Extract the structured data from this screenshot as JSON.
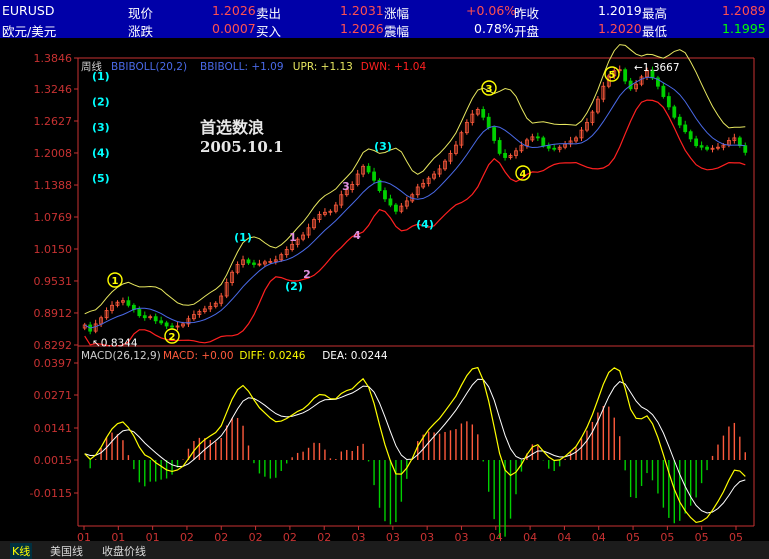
{
  "quote": {
    "symbol": "EURUSD",
    "name": "欧元/美元",
    "fields": [
      {
        "label": "现价",
        "value": "1.2026"
      },
      {
        "label": "卖出",
        "value": "1.2031"
      },
      {
        "label": "涨幅",
        "value": "+0.06%"
      },
      {
        "label": "昨收",
        "value": "1.2019"
      },
      {
        "label": "最高",
        "value": "1.2089"
      },
      {
        "label": "涨跌",
        "value": "0.0007"
      },
      {
        "label": "买入",
        "value": "1.2026"
      },
      {
        "label": "震幅",
        "value": "0.78%"
      },
      {
        "label": "开盘",
        "value": "1.2020"
      },
      {
        "label": "最低",
        "value": "1.1995"
      }
    ]
  },
  "tabs": [
    "K线",
    "美国线",
    "收盘价线"
  ],
  "colors": {
    "up": "#ff5a3c",
    "down": "#00d000",
    "upper_band": "#e8e860",
    "mid_band": "#4a6ae8",
    "lower_band": "#ff2020",
    "diff": "#ffff00",
    "dea": "#ffffff",
    "axis": "#c83232",
    "label": "#00ffff"
  },
  "chart_data": [
    {
      "type": "candlestick",
      "period": "周线",
      "indicator": "BBIBOLL(20,2)",
      "legend": [
        {
          "text": "BBIBOLL: +1.09",
          "color": "#4a6ae8"
        },
        {
          "text": "UPR: +1.13",
          "color": "#e8e860"
        },
        {
          "text": "DWN: +1.04",
          "color": "#ff2020"
        }
      ],
      "ylim": [
        0.8292,
        1.3846
      ],
      "yticks": [
        "1.3846",
        "1.3246",
        "1.2627",
        "1.2008",
        "1.1388",
        "1.0769",
        "1.0150",
        "0.9531",
        "0.8912",
        "0.8292"
      ],
      "xticks": [
        "01",
        "01",
        "01",
        "02",
        "02",
        "02",
        "02",
        "02",
        "03",
        "03",
        "03",
        "03",
        "04",
        "04",
        "04",
        "04",
        "05",
        "05",
        "05",
        "05"
      ],
      "annotation": {
        "title": "首选数浪",
        "date": "2005.10.1"
      },
      "markers": [
        {
          "text": "0.8344",
          "value": 0.8344
        },
        {
          "text": "1.3667",
          "value": 1.3667
        }
      ],
      "legend_waves": [
        "(1)",
        "(2)",
        "(3)",
        "(4)",
        "(5)"
      ],
      "wave_labels": [
        {
          "text": "1",
          "style": "circle"
        },
        {
          "text": "2",
          "style": "circle"
        },
        {
          "text": "(1)",
          "style": "paren"
        },
        {
          "text": "(2)",
          "style": "paren"
        },
        {
          "text": "1",
          "style": "minor"
        },
        {
          "text": "2",
          "style": "minor"
        },
        {
          "text": "3",
          "style": "minor"
        },
        {
          "text": "4",
          "style": "minor"
        },
        {
          "text": "(3)",
          "style": "paren"
        },
        {
          "text": "(4)",
          "style": "paren"
        },
        {
          "text": "3",
          "style": "circle"
        },
        {
          "text": "4",
          "style": "circle"
        },
        {
          "text": "5",
          "style": "circle"
        }
      ],
      "close": [
        0.868,
        0.856,
        0.87,
        0.882,
        0.896,
        0.906,
        0.912,
        0.915,
        0.906,
        0.898,
        0.886,
        0.882,
        0.884,
        0.876,
        0.872,
        0.866,
        0.864,
        0.866,
        0.87,
        0.88,
        0.888,
        0.894,
        0.899,
        0.904,
        0.91,
        0.924,
        0.95,
        0.97,
        0.985,
        0.994,
        0.988,
        0.985,
        0.986,
        0.99,
        0.991,
        0.994,
        1.004,
        1.014,
        1.024,
        1.034,
        1.042,
        1.056,
        1.072,
        1.082,
        1.086,
        1.088,
        1.1,
        1.12,
        1.13,
        1.14,
        1.16,
        1.175,
        1.164,
        1.148,
        1.128,
        1.112,
        1.1,
        1.088,
        1.098,
        1.108,
        1.12,
        1.135,
        1.142,
        1.152,
        1.16,
        1.17,
        1.185,
        1.2,
        1.216,
        1.24,
        1.26,
        1.276,
        1.285,
        1.27,
        1.25,
        1.225,
        1.2,
        1.192,
        1.196,
        1.205,
        1.215,
        1.226,
        1.232,
        1.23,
        1.215,
        1.21,
        1.208,
        1.212,
        1.218,
        1.224,
        1.23,
        1.245,
        1.26,
        1.28,
        1.305,
        1.33,
        1.35,
        1.36,
        1.362,
        1.34,
        1.325,
        1.334,
        1.348,
        1.36,
        1.346,
        1.33,
        1.31,
        1.29,
        1.27,
        1.255,
        1.242,
        1.228,
        1.215,
        1.212,
        1.208,
        1.21,
        1.212,
        1.216,
        1.225,
        1.23,
        1.215,
        1.202
      ]
    },
    {
      "type": "macd",
      "indicator": "MACD(26,12,9)",
      "legend": [
        {
          "text": "MACD: +0.00",
          "color": "#ff5a3c"
        },
        {
          "text": "DIFF: 0.0246",
          "color": "#ffff00"
        },
        {
          "text": "DEA: 0.0244",
          "color": "#ffffff"
        }
      ],
      "ylim": [
        -0.0215,
        0.0397
      ],
      "yticks": [
        "0.0397",
        "0.0271",
        "0.0141",
        "0.0015",
        "-0.0115"
      ]
    }
  ]
}
